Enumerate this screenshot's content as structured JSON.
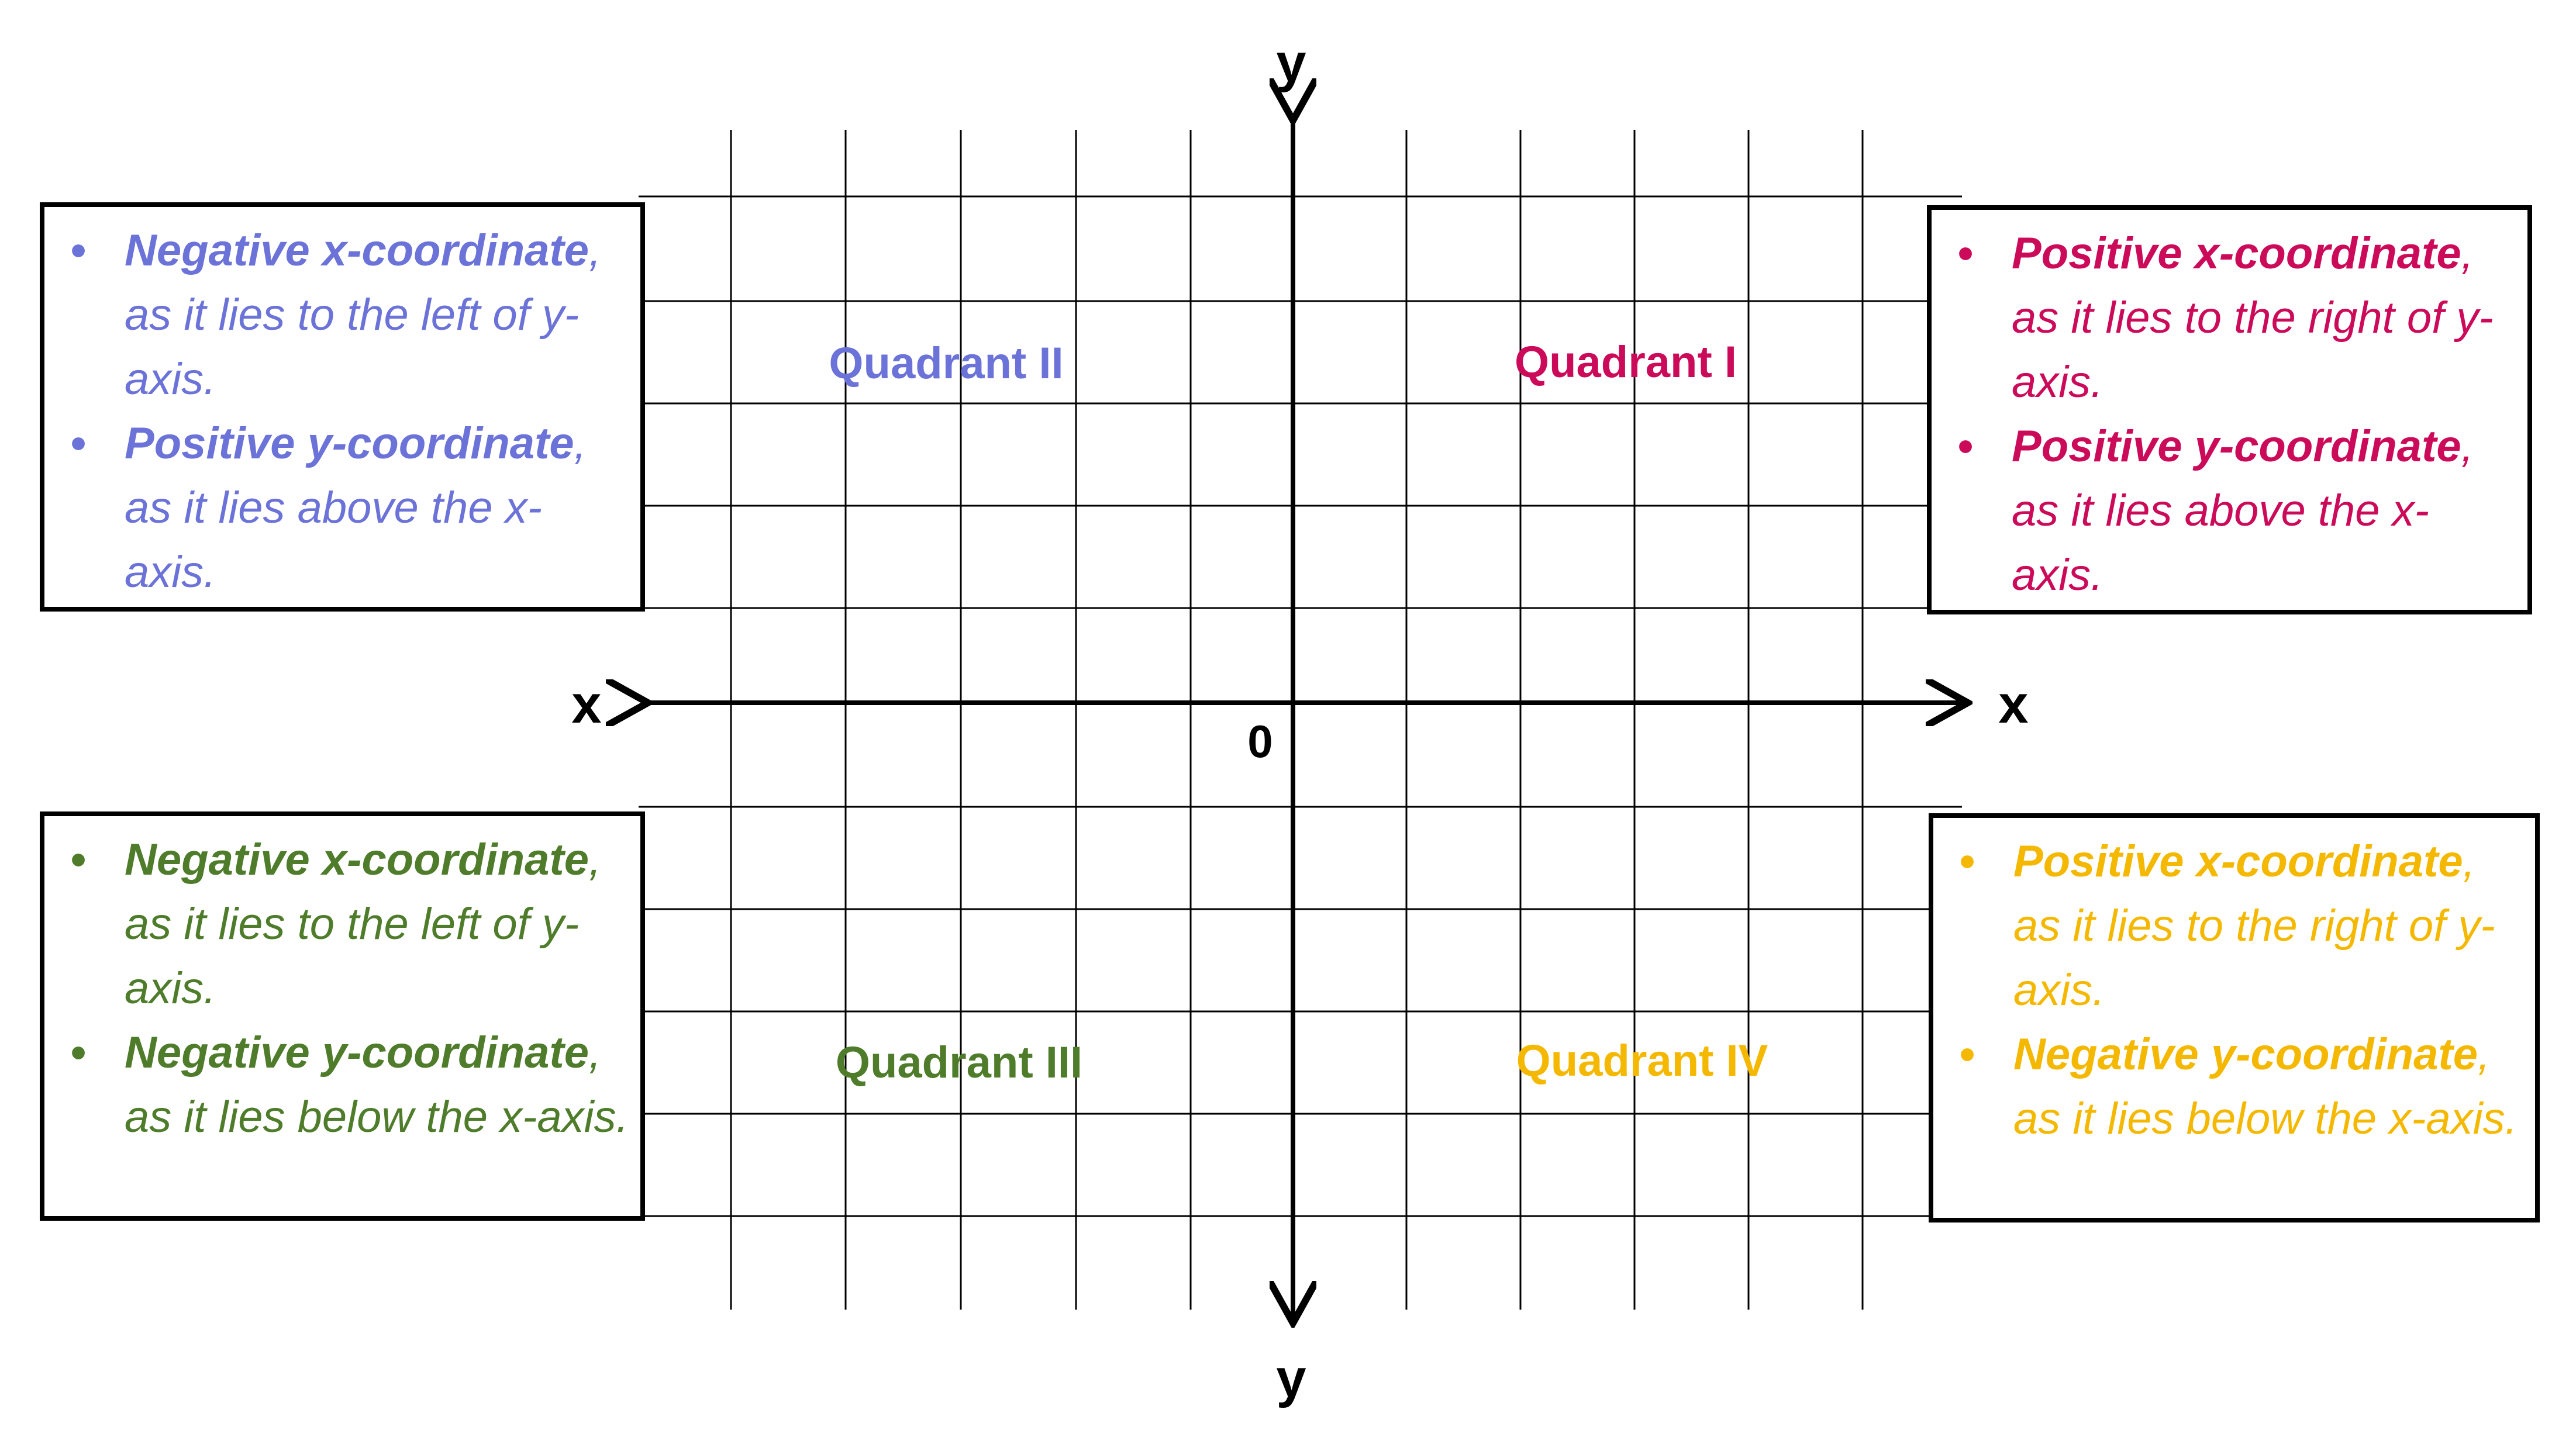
{
  "axes": {
    "y_top_label": "y",
    "y_bottom_label": "y",
    "x_left_label": "x",
    "x_right_label": "x",
    "origin_label": "0"
  },
  "quadrants": {
    "q1": {
      "label": "Quadrant I",
      "color": "#CC0A5A"
    },
    "q2": {
      "label": "Quadrant II",
      "color": "#6B72D8"
    },
    "q3": {
      "label": "Quadrant III",
      "color": "#4E7C2A"
    },
    "q4": {
      "label": "Quadrant IV",
      "color": "#F5B800"
    }
  },
  "boxes": {
    "q1": {
      "items": [
        {
          "term": "Positive x-coordinate",
          "rest": ", as it lies to the right of y-axis."
        },
        {
          "term": "Positive y-coordinate",
          "rest": ", as it lies above the x-axis."
        }
      ]
    },
    "q2": {
      "items": [
        {
          "term": "Negative x-coordinate",
          "rest": ", as it lies to the left of y-axis."
        },
        {
          "term": "Positive y-coordinate",
          "rest": ", as it lies above the x-axis."
        }
      ]
    },
    "q3": {
      "items": [
        {
          "term": "Negative x-coordinate",
          "rest": ", as it lies to the left of y-axis."
        },
        {
          "term": "Negative y-coordinate",
          "rest": ", as it lies below the x-axis."
        }
      ]
    },
    "q4": {
      "items": [
        {
          "term": "Positive x-coordinate",
          "rest": ", as it lies to the right of y-axis."
        },
        {
          "term": "Negative y-coordinate",
          "rest": ", as it lies below the x-axis."
        }
      ]
    }
  },
  "bullet_symbol": "•"
}
